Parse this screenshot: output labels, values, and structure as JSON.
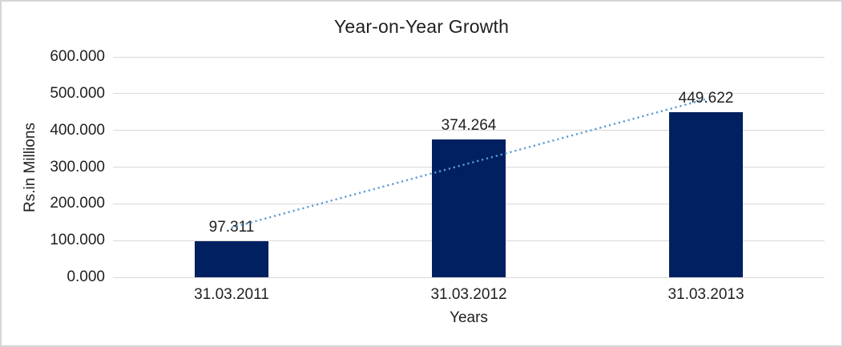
{
  "chart_data": {
    "type": "bar",
    "title": "Year-on-Year Growth",
    "xlabel": "Years",
    "ylabel": "Rs.in Millions",
    "categories": [
      "31.03.2011",
      "31.03.2012",
      "31.03.2013"
    ],
    "values": [
      97.311,
      374.264,
      449.622
    ],
    "value_labels": [
      "97.311",
      "374.264",
      "449.622"
    ],
    "ylim": [
      0,
      600
    ],
    "ytick_step": 100,
    "ytick_labels": [
      "0.000",
      "100.000",
      "200.000",
      "300.000",
      "400.000",
      "500.000",
      "600.000"
    ],
    "grid": true,
    "legend": "none",
    "bar_color": "#002060",
    "grid_color": "#d9d9d9",
    "text_color": "#1f1f1f",
    "trendline": {
      "type": "linear",
      "style": "dotted",
      "color": "#5b9bd5",
      "start_value": 135,
      "end_value": 485
    }
  }
}
